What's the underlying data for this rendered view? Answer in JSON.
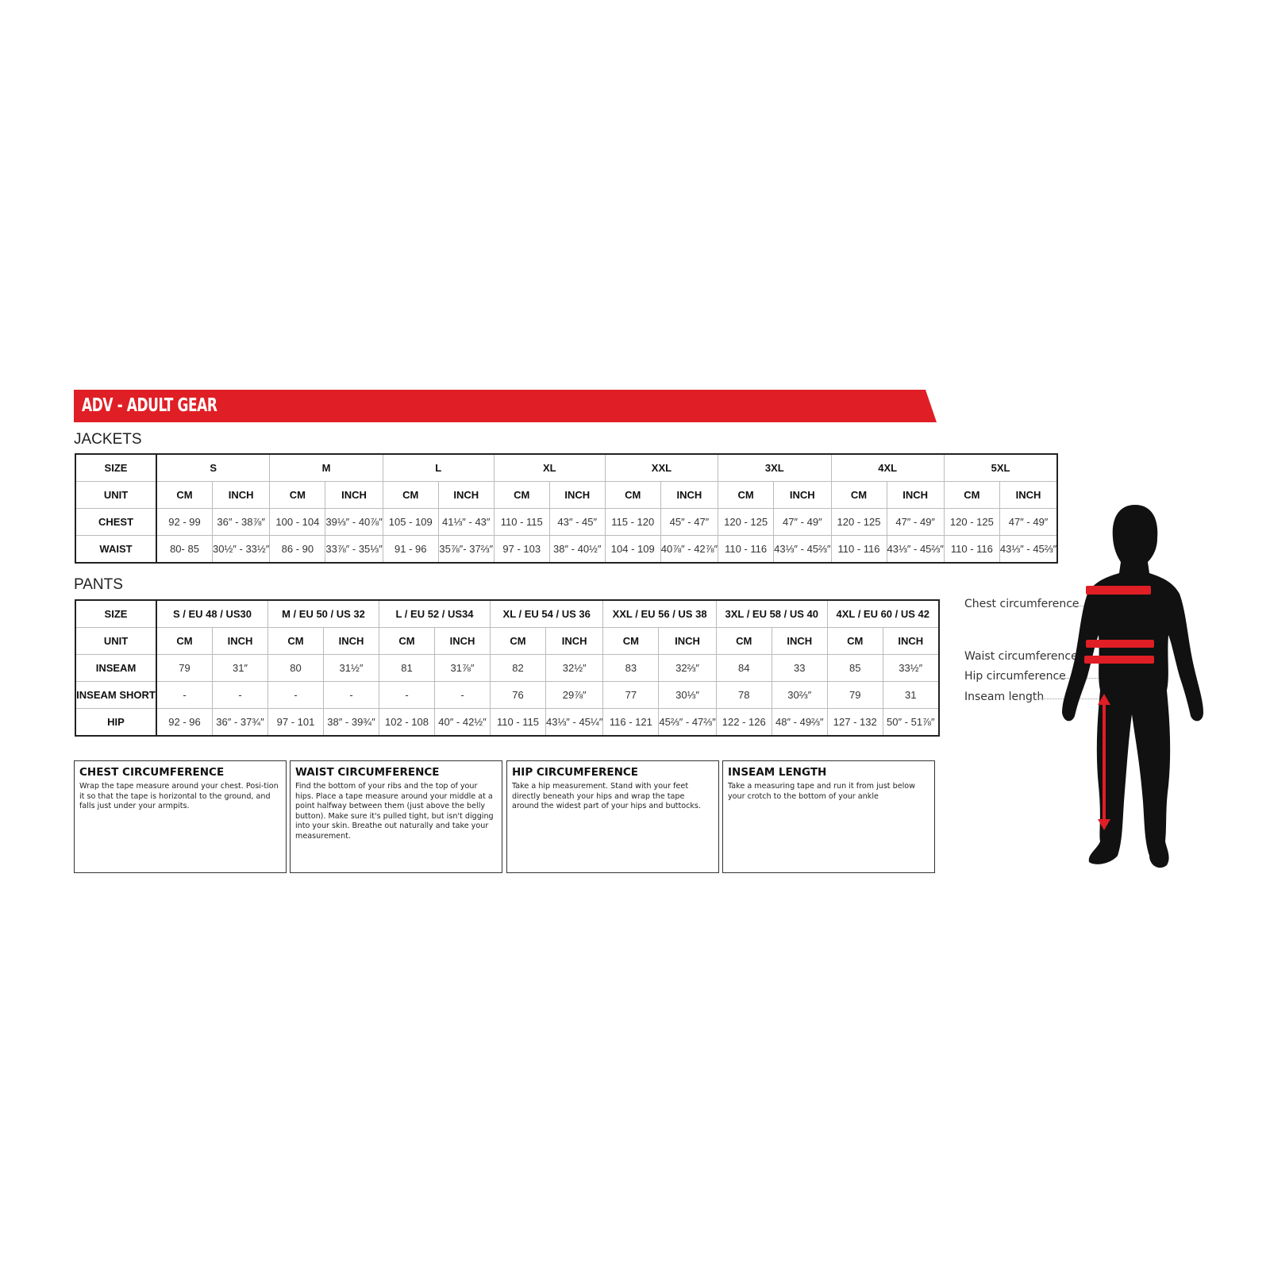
{
  "banner": {
    "title": "ADV - ADULT GEAR",
    "color": "#e01e25"
  },
  "jackets": {
    "title": "JACKETS",
    "rows": [
      [
        "SIZE",
        "S",
        "M",
        "L",
        "XL",
        "XXL",
        "3XL",
        "4XL",
        "5XL"
      ],
      [
        "UNIT",
        "CM",
        "INCH",
        "CM",
        "INCH",
        "CM",
        "INCH",
        "CM",
        "INCH",
        "CM",
        "INCH",
        "CM",
        "INCH",
        "CM",
        "INCH",
        "CM",
        "INCH"
      ],
      [
        "CHEST",
        "92 - 99",
        "36″ - 38⅞″",
        "100 - 104",
        "39⅓″ - 40⅞″",
        "105 - 109",
        "41⅓″ - 43″",
        "110 - 115",
        "43″ - 45″",
        "115 - 120",
        "45″ - 47″",
        "120 - 125",
        "47″ - 49″",
        "120 - 125",
        "47″ - 49″",
        "120 - 125",
        "47″ - 49″"
      ],
      [
        "WAIST",
        "80- 85",
        "30½″ - 33½″",
        "86 - 90",
        "33⅞″ - 35⅓″",
        "91 - 96",
        "35⅞″- 37⅔″",
        "97 - 103",
        "38″ - 40½″",
        "104 - 109",
        "40⅞″ - 42⅞″",
        "110 - 116",
        "43⅓″ - 45⅔″",
        "110 - 116",
        "43⅓″ - 45⅔″",
        "110 - 116",
        "43⅓″ - 45⅔″"
      ]
    ]
  },
  "pants": {
    "title": "PANTS",
    "rows": [
      [
        "SIZE",
        "S / EU 48 / US30",
        "M / EU 50 / US 32",
        "L / EU 52 / US34",
        "XL / EU 54 / US 36",
        "XXL / EU 56 / US 38",
        "3XL / EU 58 / US 40",
        "4XL / EU 60 / US 42"
      ],
      [
        "UNIT",
        "CM",
        "INCH",
        "CM",
        "INCH",
        "CM",
        "INCH",
        "CM",
        "INCH",
        "CM",
        "INCH",
        "CM",
        "INCH",
        "CM",
        "INCH"
      ],
      [
        "INSEAM",
        "79",
        "31″",
        "80",
        "31½″",
        "81",
        "31⅞″",
        "82",
        "32½″",
        "83",
        "32⅔″",
        "84",
        "33",
        "85",
        "33½″"
      ],
      [
        "INSEAM SHORT",
        "-",
        "-",
        "-",
        "-",
        "-",
        "-",
        "76",
        "29⅞″",
        "77",
        "30⅓″",
        "78",
        "30⅔″",
        "79",
        "31"
      ],
      [
        "HIP",
        "92 - 96",
        "36″ - 37¾″",
        "97 - 101",
        "38″ - 39¾″",
        "102 - 108",
        "40″ - 42½″",
        "110 - 115",
        "43⅓″ - 45¼″",
        "116 - 121",
        "45⅔″ - 47⅔″",
        "122 - 126",
        "48″ - 49⅔″",
        "127 - 132",
        "50″ - 51⅞″"
      ]
    ]
  },
  "guides": [
    {
      "title": "CHEST CIRCUMFERENCE",
      "text": "Wrap the tape measure around your chest. Posi-tion it so that the tape is horizontal to the ground, and falls just under your armpits."
    },
    {
      "title": "WAIST CIRCUMFERENCE",
      "text": "Find the bottom of your ribs and the top of your hips. Place a tape measure around your middle at a point halfway between them (just above the belly button). Make sure it's pulled tight, but isn't digging into your skin. Breathe out naturally and take your measurement."
    },
    {
      "title": "HIP CIRCUMFERENCE",
      "text": "Take a hip measurement. Stand with your feet directly beneath your hips and wrap the tape around the widest part of your hips and buttocks."
    },
    {
      "title": "INSEAM LENGTH",
      "text": "Take a measuring tape and run it from just below your crotch to the bottom of your ankle"
    }
  ],
  "figure": {
    "labels": [
      "Chest circumference",
      "Waist circumference",
      "Hip circumference",
      "Inseam length"
    ],
    "silhouette_color": "#111111",
    "tape_color": "#e01e25"
  }
}
